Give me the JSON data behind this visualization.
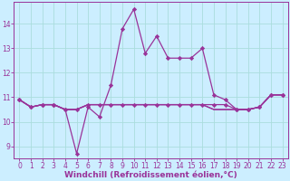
{
  "xlabel": "Windchill (Refroidissement éolien,°C)",
  "background_color": "#cceeff",
  "grid_color": "#aadddd",
  "line_color": "#993399",
  "hours": [
    0,
    1,
    2,
    3,
    4,
    5,
    6,
    7,
    8,
    9,
    10,
    11,
    12,
    13,
    14,
    15,
    16,
    17,
    18,
    19,
    20,
    21,
    22,
    23
  ],
  "line1": [
    10.9,
    10.6,
    10.7,
    10.7,
    10.5,
    8.7,
    10.6,
    10.2,
    11.5,
    13.8,
    14.6,
    12.8,
    13.5,
    12.6,
    12.6,
    12.6,
    13.0,
    11.1,
    10.9,
    10.5,
    10.5,
    10.6,
    11.1,
    11.1
  ],
  "line2": [
    10.9,
    10.6,
    10.7,
    10.7,
    10.5,
    10.5,
    10.7,
    10.7,
    10.7,
    10.7,
    10.7,
    10.7,
    10.7,
    10.7,
    10.7,
    10.7,
    10.7,
    10.7,
    10.7,
    10.5,
    10.5,
    10.6,
    11.1,
    11.1
  ],
  "line3": [
    10.9,
    10.6,
    10.7,
    10.7,
    10.5,
    10.5,
    10.7,
    10.7,
    10.7,
    10.7,
    10.7,
    10.7,
    10.7,
    10.7,
    10.7,
    10.7,
    10.7,
    10.5,
    10.5,
    10.5,
    10.5,
    10.6,
    11.1,
    11.1
  ],
  "line4": [
    10.9,
    10.6,
    10.7,
    10.7,
    10.5,
    10.5,
    10.7,
    10.7,
    10.7,
    10.7,
    10.7,
    10.7,
    10.7,
    10.7,
    10.7,
    10.7,
    10.7,
    10.5,
    10.5,
    10.5,
    10.5,
    10.6,
    11.1,
    11.1
  ],
  "ylim": [
    8.5,
    14.9
  ],
  "yticks": [
    9,
    10,
    11,
    12,
    13,
    14
  ],
  "xticks": [
    0,
    1,
    2,
    3,
    4,
    5,
    6,
    7,
    8,
    9,
    10,
    11,
    12,
    13,
    14,
    15,
    16,
    17,
    18,
    19,
    20,
    21,
    22,
    23
  ],
  "marker": "D",
  "markersize": 2.2,
  "linewidth": 0.9,
  "font_color": "#993399",
  "tick_fontsize": 5.5,
  "xlabel_fontsize": 6.5
}
